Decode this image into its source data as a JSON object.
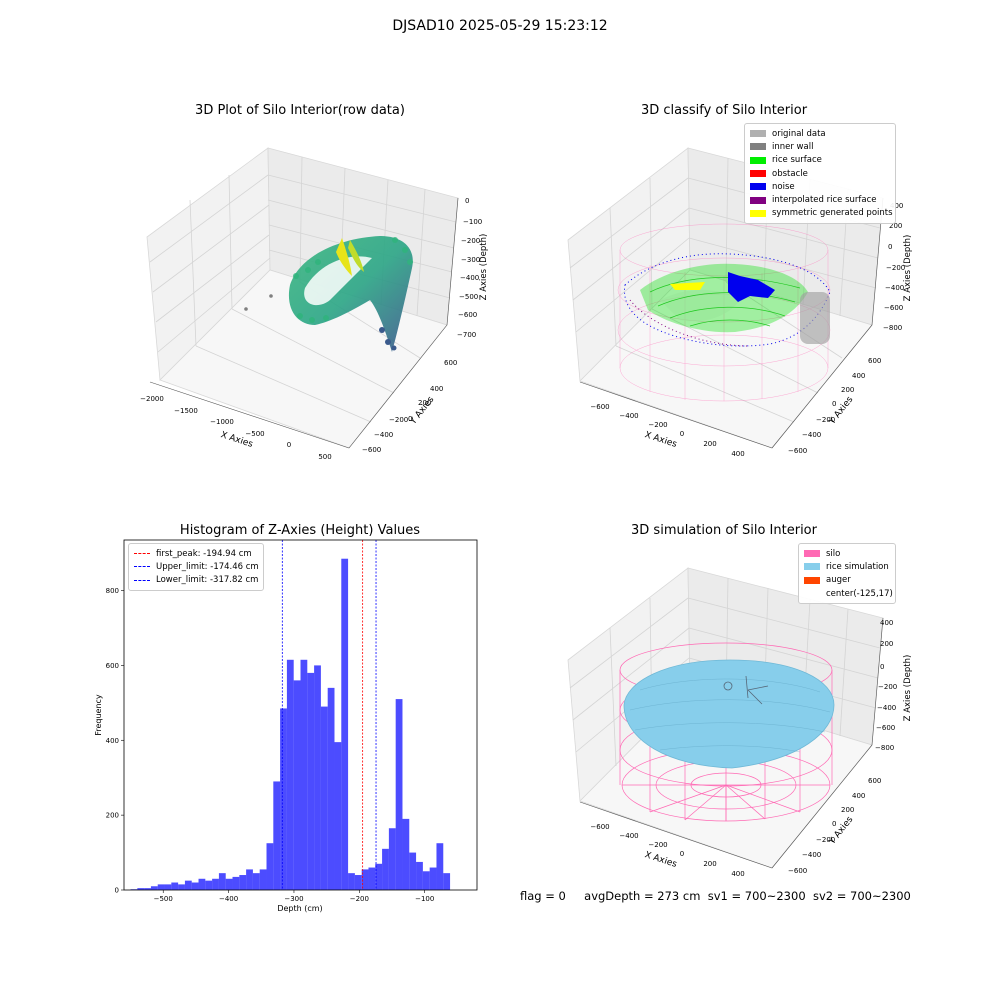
{
  "suptitle": "DJSAD10 2025-05-29 15:23:12",
  "panels": {
    "raw": {
      "title": "3D Plot of Silo Interior(row data)",
      "xlabel": "X Axies",
      "ylabel": "Y Axies",
      "zlabel": "Z Axies (Depth)",
      "xticks": [
        "−2000",
        "−1500",
        "−1000",
        "−500",
        "0",
        "500"
      ],
      "yticks": [
        "600",
        "400",
        "200",
        "0",
        "−200",
        "−400",
        "−600"
      ],
      "zticks": [
        "0",
        "−100",
        "−200",
        "−300",
        "−400",
        "−500",
        "−600",
        "−700"
      ]
    },
    "classify": {
      "title": "3D classify of Silo Interior",
      "xlabel": "X Axies",
      "ylabel": "Y Axies",
      "zlabel": "Z Axies (Depth)",
      "xticks": [
        "−600",
        "−400",
        "−200",
        "0",
        "200",
        "400"
      ],
      "yticks": [
        "600",
        "400",
        "200",
        "0",
        "−200",
        "−400",
        "−600"
      ],
      "zticks": [
        "200",
        "0",
        "−200",
        "−400",
        "−600",
        "−800"
      ],
      "zticks_top": [
        "400"
      ],
      "legend": [
        {
          "label": "original data",
          "color": "#b0b0b0"
        },
        {
          "label": "inner wall",
          "color": "#808080"
        },
        {
          "label": "rice surface",
          "color": "#00ee00"
        },
        {
          "label": "obstacle",
          "color": "#ff0000"
        },
        {
          "label": "noise",
          "color": "#0000ee"
        },
        {
          "label": "interpolated rice surface",
          "color": "#800080"
        },
        {
          "label": "symmetric generated points",
          "color": "#ffff00"
        }
      ]
    },
    "simulation": {
      "title": "3D simulation of Silo Interior",
      "xlabel": "X Axies",
      "ylabel": "Y Axies",
      "zlabel": "Z Axies (Depth)",
      "xticks": [
        "−600",
        "−400",
        "−200",
        "0",
        "200",
        "400"
      ],
      "yticks": [
        "600",
        "400",
        "200",
        "0",
        "−200",
        "−400",
        "−600"
      ],
      "zticks": [
        "400",
        "200",
        "0",
        "−200",
        "−400",
        "−600",
        "−800"
      ],
      "legend": [
        {
          "label": "silo",
          "color": "#ff69b4"
        },
        {
          "label": "rice simulation",
          "color": "#87ceeb"
        },
        {
          "label": "auger",
          "color": "#ff4500"
        },
        {
          "label": "center(-125,17)",
          "color": ""
        }
      ]
    }
  },
  "info": {
    "flag": "flag = 0",
    "avg_depth": "avgDepth = 273 cm",
    "sv1": "sv1 = 700~2300",
    "sv2": "sv2 = 700~2300"
  },
  "chart_data": {
    "type": "bar",
    "title": "Histogram of Z-Axies (Height) Values",
    "xlabel": "Depth (cm)",
    "ylabel": "Frequency",
    "xlim": [
      -560,
      -20
    ],
    "ylim": [
      0,
      935
    ],
    "xticks": [
      -500,
      -400,
      -300,
      -200,
      -100
    ],
    "yticks": [
      0,
      200,
      400,
      600,
      800
    ],
    "bar_color": "#0000ff",
    "bin_width": 10.4,
    "bin_start": -550,
    "values": [
      2,
      5,
      5,
      10,
      15,
      15,
      20,
      15,
      25,
      20,
      30,
      25,
      30,
      45,
      30,
      35,
      40,
      55,
      45,
      55,
      125,
      290,
      485,
      615,
      560,
      615,
      580,
      600,
      490,
      540,
      395,
      885,
      45,
      40,
      55,
      60,
      70,
      110,
      165,
      510,
      190,
      100,
      75,
      50,
      60,
      125,
      45
    ],
    "vlines": [
      {
        "label": "first_peak: -194.94 cm",
        "x": -194.94,
        "color": "#ff0000"
      },
      {
        "label": "Upper_limit: -174.46 cm",
        "x": -174.46,
        "color": "#0000ff"
      },
      {
        "label": "Lower_limit: -317.82 cm",
        "x": -317.82,
        "color": "#0000ff"
      }
    ]
  }
}
